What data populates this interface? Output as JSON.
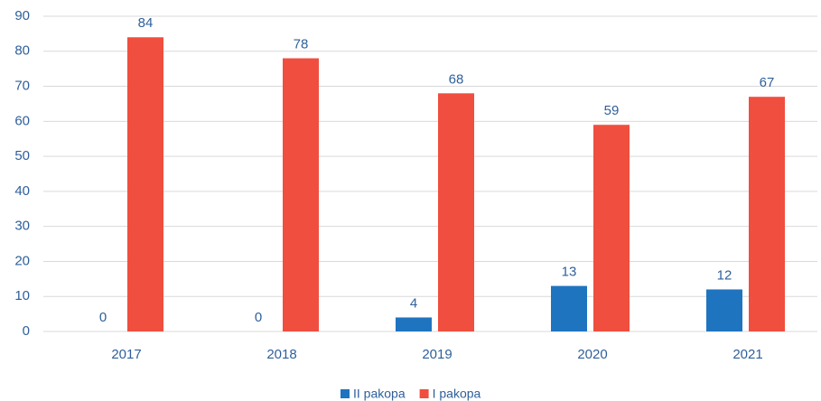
{
  "chart_data": {
    "type": "bar",
    "categories": [
      "2017",
      "2018",
      "2019",
      "2020",
      "2021"
    ],
    "series": [
      {
        "name": "II pakopa",
        "color": "#1f74c0",
        "values": [
          0,
          0,
          4,
          13,
          12
        ]
      },
      {
        "name": "I pakopa",
        "color": "#f04e3e",
        "values": [
          84,
          78,
          68,
          59,
          67
        ]
      }
    ],
    "ylim": [
      0,
      90
    ],
    "yticks": [
      0,
      10,
      20,
      30,
      40,
      50,
      60,
      70,
      80,
      90
    ],
    "grid": true,
    "legend": "bottom"
  }
}
